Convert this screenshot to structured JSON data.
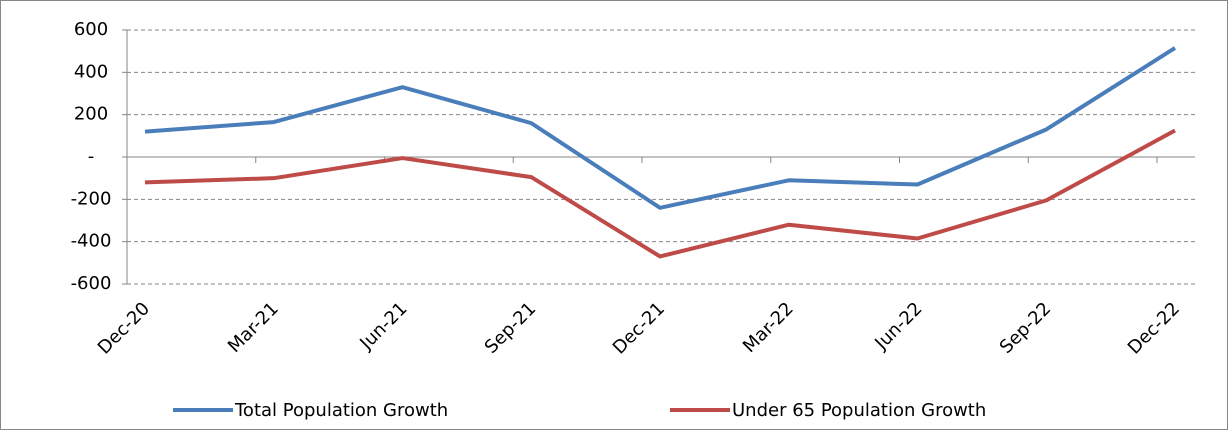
{
  "chart_data": {
    "type": "line",
    "categories": [
      "Dec-20",
      "Mar-21",
      "Jun-21",
      "Sep-21",
      "Dec-21",
      "Mar-22",
      "Jun-22",
      "Sep-22",
      "Dec-22"
    ],
    "series": [
      {
        "name": "Total Population Growth",
        "color": "#4a7ebb",
        "values": [
          120,
          165,
          330,
          160,
          -240,
          -110,
          -130,
          130,
          515
        ]
      },
      {
        "name": "Under 65 Population Growth",
        "color": "#be4b48",
        "values": [
          -120,
          -100,
          -5,
          -95,
          -470,
          -320,
          -385,
          -205,
          125
        ]
      }
    ],
    "ylim": [
      -600,
      600
    ],
    "yticks": [
      -600,
      -400,
      -200,
      {
        "value": 0,
        "label": "-"
      },
      200,
      400,
      600
    ],
    "grid": true,
    "legend": "bottom"
  }
}
